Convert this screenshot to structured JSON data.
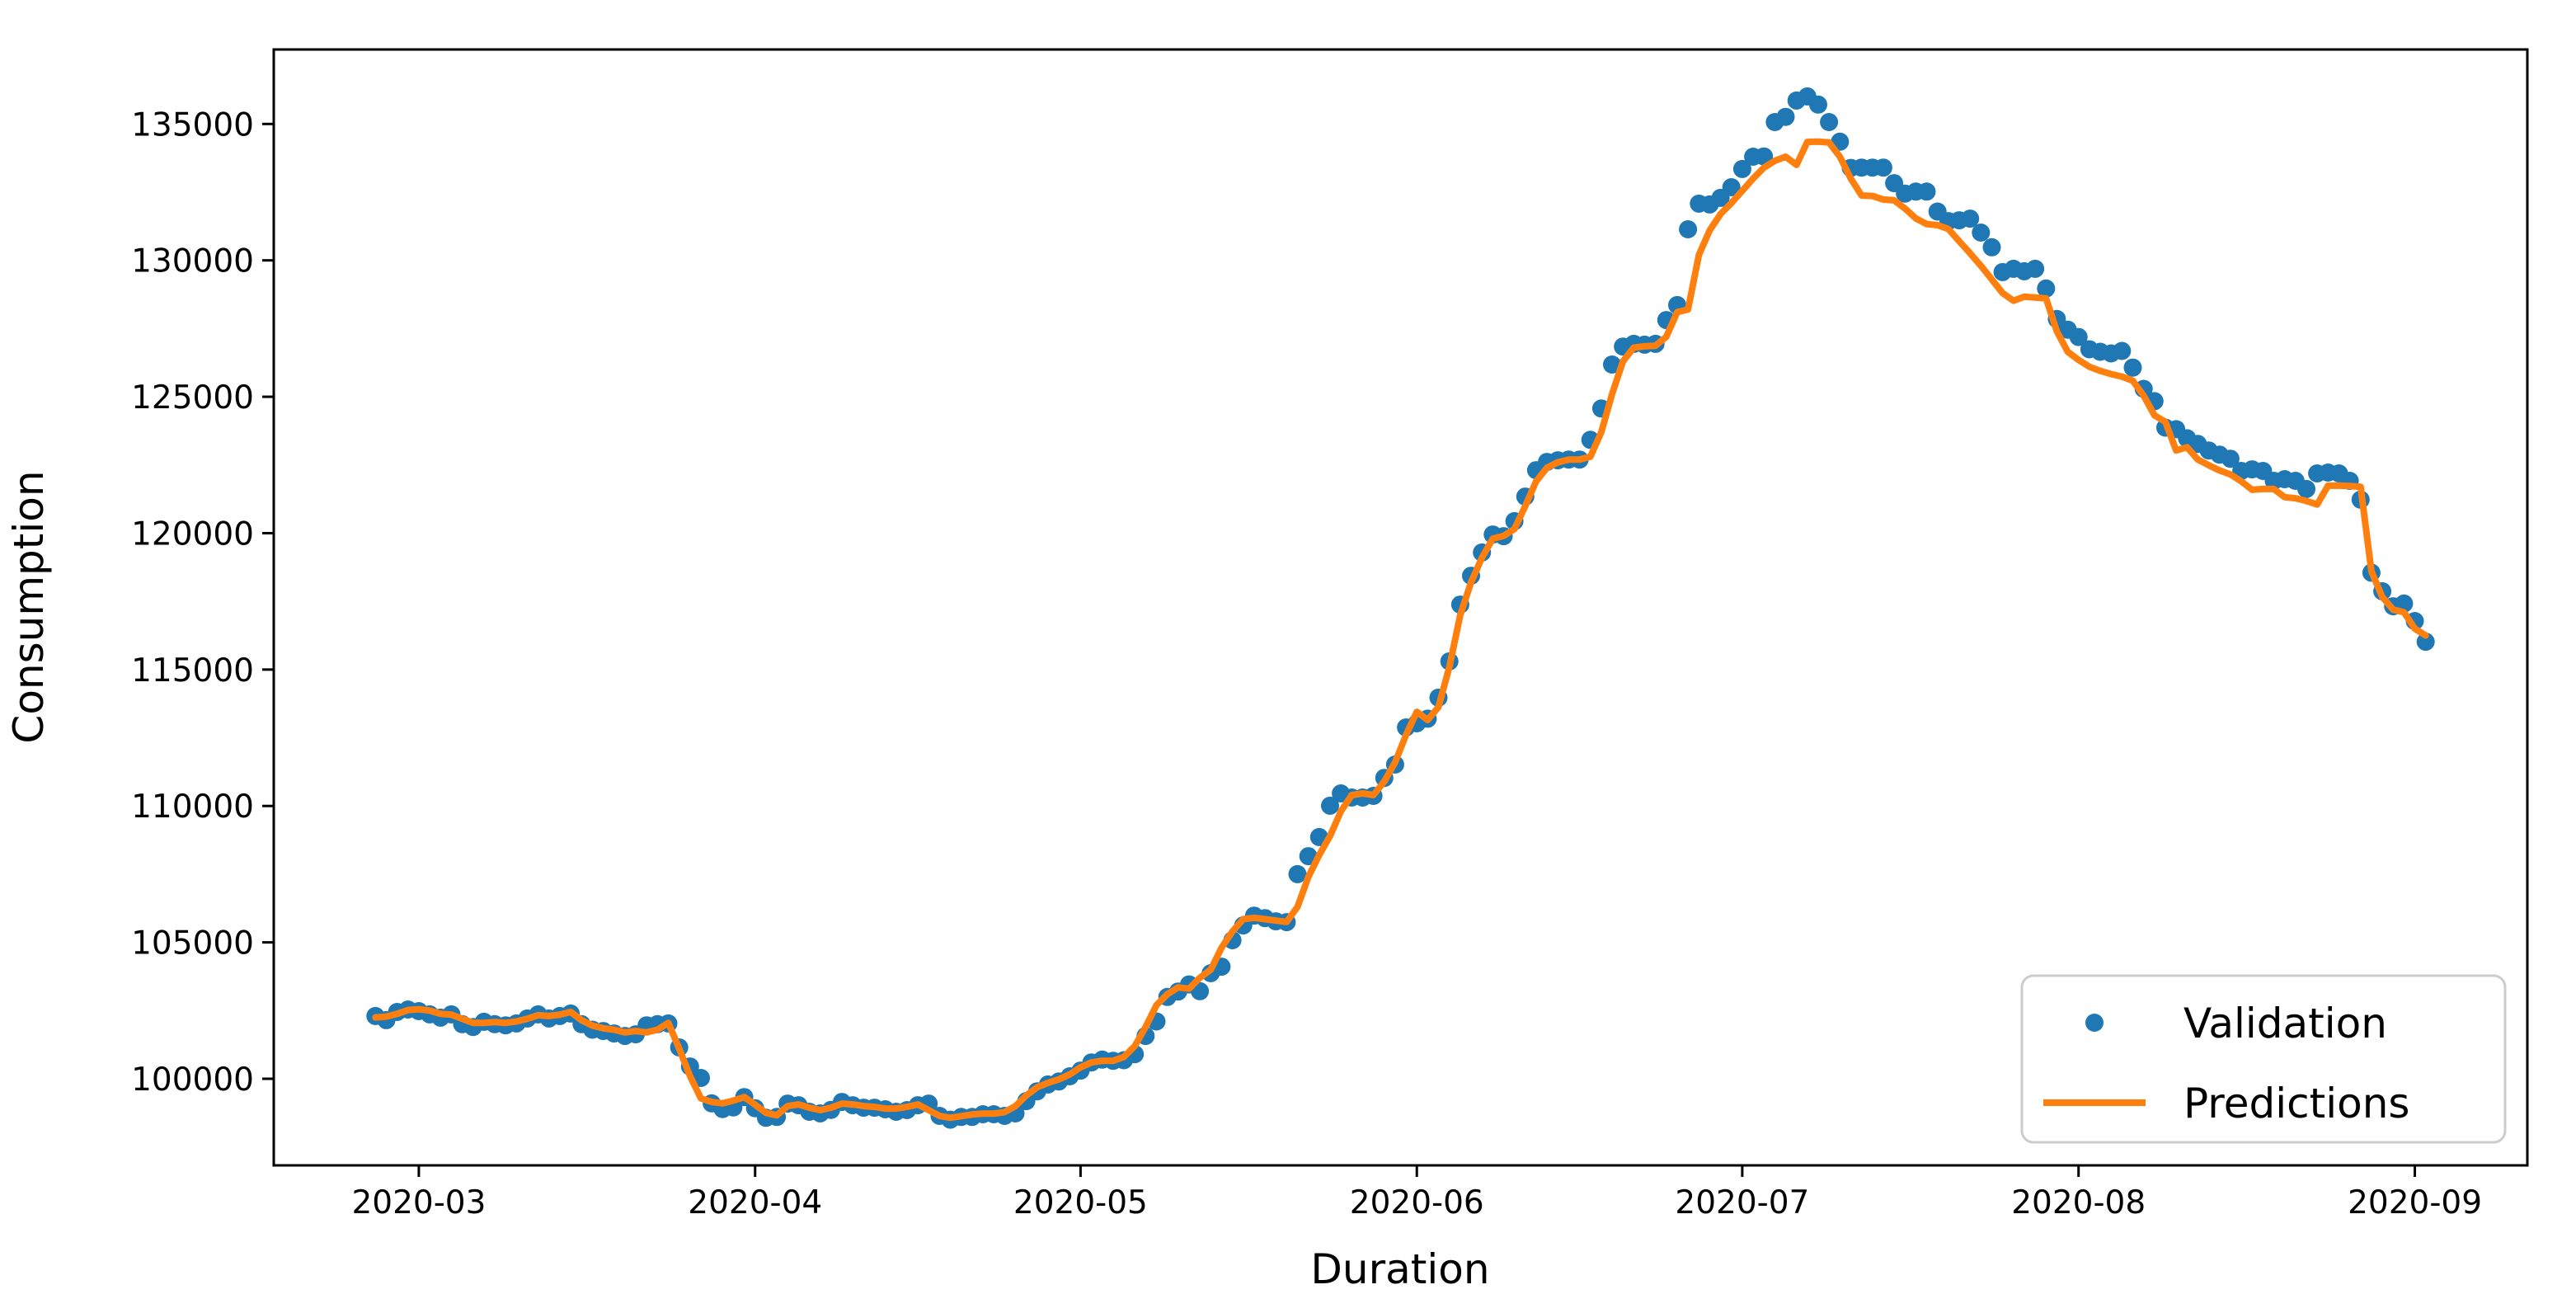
{
  "figure": {
    "background": "#ffffff"
  },
  "chart_data": {
    "type": "scatter",
    "title": "",
    "xlabel": "Duration",
    "ylabel": "Consumption",
    "grid": false,
    "legend_position": "lower right",
    "start_date": "2020-02-26",
    "x_tick_labels": [
      "2020-03",
      "2020-04",
      "2020-05",
      "2020-06",
      "2020-07",
      "2020-08",
      "2020-09"
    ],
    "x_tick_day_offsets": [
      4,
      35,
      65,
      96,
      126,
      157,
      188
    ],
    "y_ticks": [
      100000,
      105000,
      110000,
      115000,
      120000,
      125000,
      130000,
      135000
    ],
    "ylim": [
      96800,
      137700
    ],
    "series": [
      {
        "name": "Validation",
        "type": "scatter",
        "marker": "circle",
        "color": "#1f77b4",
        "values": [
          102300,
          102150,
          102450,
          102540,
          102480,
          102360,
          102240,
          102360,
          102000,
          101900,
          102090,
          102000,
          101960,
          102030,
          102210,
          102360,
          102210,
          102300,
          102390,
          102000,
          101800,
          101750,
          101660,
          101570,
          101630,
          101960,
          102000,
          102030,
          101150,
          100450,
          100030,
          99100,
          98890,
          98950,
          99330,
          98920,
          98570,
          98600,
          99090,
          99030,
          98790,
          98730,
          98860,
          99150,
          99030,
          98940,
          98940,
          98880,
          98790,
          98850,
          99030,
          99090,
          98640,
          98500,
          98600,
          98600,
          98700,
          98700,
          98640,
          98730,
          99180,
          99540,
          99790,
          99900,
          100090,
          100300,
          100600,
          100700,
          100660,
          100680,
          100900,
          101570,
          102100,
          103000,
          103200,
          103460,
          103210,
          103870,
          104110,
          105080,
          105620,
          105980,
          105890,
          105770,
          105740,
          107500,
          108160,
          108860,
          110010,
          110460,
          110310,
          110310,
          110370,
          111030,
          111520,
          112880,
          113030,
          113200,
          113970,
          115300,
          117380,
          118440,
          119290,
          119950,
          119890,
          120440,
          121340,
          122310,
          122610,
          122670,
          122700,
          122700,
          123420,
          124570,
          126180,
          126840,
          126940,
          126910,
          126940,
          127810,
          128360,
          131140,
          132080,
          132050,
          132290,
          132680,
          133350,
          133800,
          133810,
          135070,
          135260,
          135860,
          136010,
          135710,
          135070,
          134350,
          133390,
          133400,
          133400,
          133400,
          132830,
          132450,
          132520,
          132520,
          131790,
          131440,
          131470,
          131530,
          131020,
          130480,
          129570,
          129690,
          129600,
          129690,
          128970,
          127850,
          127460,
          127190,
          126740,
          126650,
          126590,
          126680,
          126070,
          125290,
          124840,
          123870,
          123810,
          123480,
          123270,
          123030,
          122880,
          122730,
          122280,
          122340,
          122280,
          121920,
          121980,
          121920,
          121620,
          122190,
          122220,
          122190,
          121920,
          121230,
          118550,
          117870,
          117320,
          117420,
          116780,
          116020
        ]
      },
      {
        "name": "Predictions",
        "type": "line",
        "color": "#ff7f0e",
        "values": [
          102250,
          102280,
          102380,
          102520,
          102550,
          102500,
          102380,
          102350,
          102200,
          102050,
          102050,
          102080,
          102050,
          102100,
          102200,
          102330,
          102300,
          102350,
          102450,
          102150,
          101950,
          101850,
          101800,
          101700,
          101750,
          101700,
          101800,
          102050,
          101100,
          100100,
          99280,
          99150,
          99100,
          99200,
          99330,
          99050,
          98750,
          98660,
          99000,
          99060,
          98940,
          98850,
          98940,
          99090,
          99060,
          99000,
          98970,
          98910,
          98910,
          98970,
          99060,
          98850,
          98640,
          98570,
          98630,
          98690,
          98720,
          98720,
          98780,
          99000,
          99390,
          99690,
          99850,
          99980,
          100160,
          100420,
          100600,
          100660,
          100660,
          100800,
          101200,
          101900,
          102700,
          103100,
          103350,
          103300,
          103700,
          104000,
          104800,
          105400,
          105850,
          105900,
          105850,
          105800,
          105750,
          106300,
          107400,
          108200,
          108900,
          109800,
          110400,
          110460,
          110400,
          110900,
          111600,
          112600,
          113450,
          113150,
          113630,
          115100,
          117000,
          118200,
          119100,
          119800,
          119900,
          120150,
          121000,
          121900,
          122400,
          122600,
          122700,
          122700,
          122800,
          123700,
          125100,
          126300,
          126800,
          126850,
          126870,
          127200,
          128100,
          128200,
          130200,
          131100,
          131700,
          132100,
          132550,
          133000,
          133400,
          133650,
          133800,
          133500,
          134340,
          134350,
          134320,
          133800,
          133000,
          132380,
          132360,
          132230,
          132200,
          131900,
          131540,
          131330,
          131290,
          131150,
          130700,
          130260,
          129800,
          129300,
          128800,
          128520,
          128670,
          128640,
          128610,
          127400,
          126650,
          126350,
          126100,
          125950,
          125830,
          125740,
          125590,
          125040,
          124320,
          124080,
          123030,
          123150,
          122700,
          122490,
          122300,
          122150,
          121900,
          121590,
          121620,
          121620,
          121320,
          121280,
          121180,
          121050,
          121740,
          121740,
          121730,
          121700,
          118600,
          117660,
          117200,
          117100,
          116500,
          116250
        ]
      }
    ]
  },
  "legend": {
    "validation_label": "Validation",
    "predictions_label": "Predictions"
  }
}
